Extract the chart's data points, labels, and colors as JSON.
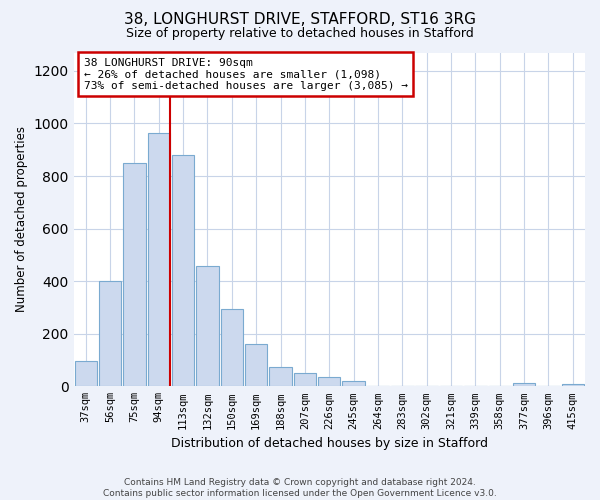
{
  "title1": "38, LONGHURST DRIVE, STAFFORD, ST16 3RG",
  "title2": "Size of property relative to detached houses in Stafford",
  "xlabel": "Distribution of detached houses by size in Stafford",
  "ylabel": "Number of detached properties",
  "bar_labels": [
    "37sqm",
    "56sqm",
    "75sqm",
    "94sqm",
    "113sqm",
    "132sqm",
    "150sqm",
    "169sqm",
    "188sqm",
    "207sqm",
    "226sqm",
    "245sqm",
    "264sqm",
    "283sqm",
    "302sqm",
    "321sqm",
    "339sqm",
    "358sqm",
    "377sqm",
    "396sqm",
    "415sqm"
  ],
  "bar_values": [
    95,
    400,
    848,
    963,
    880,
    458,
    295,
    160,
    72,
    52,
    35,
    20,
    0,
    0,
    0,
    0,
    0,
    0,
    13,
    0,
    8
  ],
  "bar_color": "#ccd9ee",
  "bar_edge_color": "#7aaad0",
  "vline_color": "#cc0000",
  "annotation_title": "38 LONGHURST DRIVE: 90sqm",
  "annotation_line1": "← 26% of detached houses are smaller (1,098)",
  "annotation_line2": "73% of semi-detached houses are larger (3,085) →",
  "annotation_box_color": "#ffffff",
  "annotation_box_edge": "#cc0000",
  "ylim": [
    0,
    1270
  ],
  "yticks": [
    0,
    200,
    400,
    600,
    800,
    1000,
    1200
  ],
  "footer1": "Contains HM Land Registry data © Crown copyright and database right 2024.",
  "footer2": "Contains public sector information licensed under the Open Government Licence v3.0.",
  "bg_color": "#eef2fa",
  "plot_bg_color": "#ffffff",
  "grid_color": "#c8d4e8"
}
